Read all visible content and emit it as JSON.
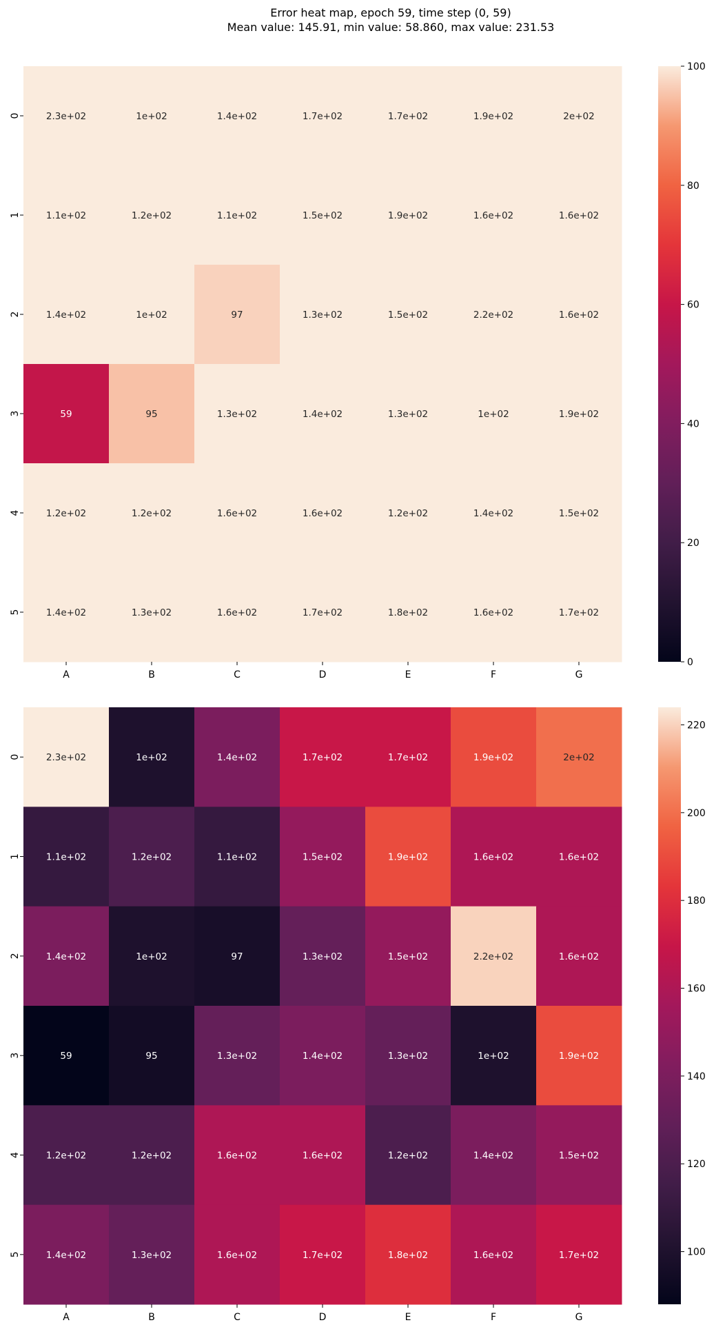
{
  "title": {
    "line1": "Error heat map, epoch 59, time step (0, 59)",
    "line2": "Mean value: 145.91, min value: 58.860, max value: 231.53"
  },
  "chart_data": [
    {
      "type": "heatmap",
      "colormap": "rocket",
      "x_labels": [
        "A",
        "B",
        "C",
        "D",
        "E",
        "F",
        "G"
      ],
      "y_labels": [
        "0",
        "1",
        "2",
        "3",
        "4",
        "5"
      ],
      "values": [
        [
          231.53,
          100,
          140,
          170,
          170,
          190,
          200
        ],
        [
          110,
          120,
          110,
          150,
          190,
          160,
          160
        ],
        [
          140,
          100,
          97,
          130,
          150,
          220,
          160
        ],
        [
          58.86,
          95,
          130,
          140,
          130,
          100,
          190
        ],
        [
          120,
          120,
          160,
          160,
          120,
          140,
          150
        ],
        [
          140,
          130,
          160,
          170,
          180,
          160,
          170
        ]
      ],
      "annotations": [
        [
          "2.3e+02",
          "1e+02",
          "1.4e+02",
          "1.7e+02",
          "1.7e+02",
          "1.9e+02",
          "2e+02"
        ],
        [
          "1.1e+02",
          "1.2e+02",
          "1.1e+02",
          "1.5e+02",
          "1.9e+02",
          "1.6e+02",
          "1.6e+02"
        ],
        [
          "1.4e+02",
          "1e+02",
          "97",
          "1.3e+02",
          "1.5e+02",
          "2.2e+02",
          "1.6e+02"
        ],
        [
          "59",
          "95",
          "1.3e+02",
          "1.4e+02",
          "1.3e+02",
          "1e+02",
          "1.9e+02"
        ],
        [
          "1.2e+02",
          "1.2e+02",
          "1.6e+02",
          "1.6e+02",
          "1.2e+02",
          "1.4e+02",
          "1.5e+02"
        ],
        [
          "1.4e+02",
          "1.3e+02",
          "1.6e+02",
          "1.7e+02",
          "1.8e+02",
          "1.6e+02",
          "1.7e+02"
        ]
      ],
      "vmin": 0,
      "vmax": 100,
      "colorbar_ticks": [
        "0",
        "20",
        "40",
        "60",
        "80",
        "100"
      ]
    },
    {
      "type": "heatmap",
      "colormap": "rocket",
      "x_labels": [
        "A",
        "B",
        "C",
        "D",
        "E",
        "F",
        "G"
      ],
      "y_labels": [
        "0",
        "1",
        "2",
        "3",
        "4",
        "5"
      ],
      "values": [
        [
          231.53,
          100,
          140,
          170,
          170,
          190,
          200
        ],
        [
          110,
          120,
          110,
          150,
          190,
          160,
          160
        ],
        [
          140,
          100,
          97,
          130,
          150,
          220,
          160
        ],
        [
          58.86,
          95,
          130,
          140,
          130,
          100,
          190
        ],
        [
          120,
          120,
          160,
          160,
          120,
          140,
          150
        ],
        [
          140,
          130,
          160,
          170,
          180,
          160,
          170
        ]
      ],
      "annotations": [
        [
          "2.3e+02",
          "1e+02",
          "1.4e+02",
          "1.7e+02",
          "1.7e+02",
          "1.9e+02",
          "2e+02"
        ],
        [
          "1.1e+02",
          "1.2e+02",
          "1.1e+02",
          "1.5e+02",
          "1.9e+02",
          "1.6e+02",
          "1.6e+02"
        ],
        [
          "1.4e+02",
          "1e+02",
          "97",
          "1.3e+02",
          "1.5e+02",
          "2.2e+02",
          "1.6e+02"
        ],
        [
          "59",
          "95",
          "1.3e+02",
          "1.4e+02",
          "1.3e+02",
          "1e+02",
          "1.9e+02"
        ],
        [
          "1.2e+02",
          "1.2e+02",
          "1.6e+02",
          "1.6e+02",
          "1.2e+02",
          "1.4e+02",
          "1.5e+02"
        ],
        [
          "1.4e+02",
          "1.3e+02",
          "1.6e+02",
          "1.7e+02",
          "1.8e+02",
          "1.6e+02",
          "1.7e+02"
        ]
      ],
      "vmin": 88,
      "vmax": 224,
      "colorbar_ticks": [
        "100",
        "120",
        "140",
        "160",
        "180",
        "200",
        "220"
      ]
    }
  ]
}
